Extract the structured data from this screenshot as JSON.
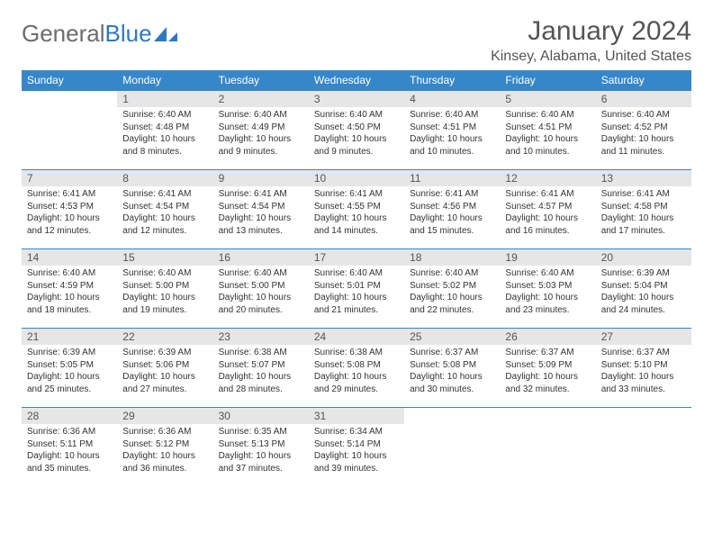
{
  "logo": {
    "text1": "General",
    "text2": "Blue"
  },
  "title": "January 2024",
  "location": "Kinsey, Alabama, United States",
  "colors": {
    "header_bg": "#3687c9",
    "header_text": "#ffffff",
    "daynum_bg": "#e6e6e6",
    "text": "#333333",
    "title": "#555555",
    "border": "#3687c9"
  },
  "day_headers": [
    "Sunday",
    "Monday",
    "Tuesday",
    "Wednesday",
    "Thursday",
    "Friday",
    "Saturday"
  ],
  "weeks": [
    [
      {
        "empty": true
      },
      {
        "n": "1",
        "sr": "6:40 AM",
        "ss": "4:48 PM",
        "dl": "10 hours and 8 minutes."
      },
      {
        "n": "2",
        "sr": "6:40 AM",
        "ss": "4:49 PM",
        "dl": "10 hours and 9 minutes."
      },
      {
        "n": "3",
        "sr": "6:40 AM",
        "ss": "4:50 PM",
        "dl": "10 hours and 9 minutes."
      },
      {
        "n": "4",
        "sr": "6:40 AM",
        "ss": "4:51 PM",
        "dl": "10 hours and 10 minutes."
      },
      {
        "n": "5",
        "sr": "6:40 AM",
        "ss": "4:51 PM",
        "dl": "10 hours and 10 minutes."
      },
      {
        "n": "6",
        "sr": "6:40 AM",
        "ss": "4:52 PM",
        "dl": "10 hours and 11 minutes."
      }
    ],
    [
      {
        "n": "7",
        "sr": "6:41 AM",
        "ss": "4:53 PM",
        "dl": "10 hours and 12 minutes."
      },
      {
        "n": "8",
        "sr": "6:41 AM",
        "ss": "4:54 PM",
        "dl": "10 hours and 12 minutes."
      },
      {
        "n": "9",
        "sr": "6:41 AM",
        "ss": "4:54 PM",
        "dl": "10 hours and 13 minutes."
      },
      {
        "n": "10",
        "sr": "6:41 AM",
        "ss": "4:55 PM",
        "dl": "10 hours and 14 minutes."
      },
      {
        "n": "11",
        "sr": "6:41 AM",
        "ss": "4:56 PM",
        "dl": "10 hours and 15 minutes."
      },
      {
        "n": "12",
        "sr": "6:41 AM",
        "ss": "4:57 PM",
        "dl": "10 hours and 16 minutes."
      },
      {
        "n": "13",
        "sr": "6:41 AM",
        "ss": "4:58 PM",
        "dl": "10 hours and 17 minutes."
      }
    ],
    [
      {
        "n": "14",
        "sr": "6:40 AM",
        "ss": "4:59 PM",
        "dl": "10 hours and 18 minutes."
      },
      {
        "n": "15",
        "sr": "6:40 AM",
        "ss": "5:00 PM",
        "dl": "10 hours and 19 minutes."
      },
      {
        "n": "16",
        "sr": "6:40 AM",
        "ss": "5:00 PM",
        "dl": "10 hours and 20 minutes."
      },
      {
        "n": "17",
        "sr": "6:40 AM",
        "ss": "5:01 PM",
        "dl": "10 hours and 21 minutes."
      },
      {
        "n": "18",
        "sr": "6:40 AM",
        "ss": "5:02 PM",
        "dl": "10 hours and 22 minutes."
      },
      {
        "n": "19",
        "sr": "6:40 AM",
        "ss": "5:03 PM",
        "dl": "10 hours and 23 minutes."
      },
      {
        "n": "20",
        "sr": "6:39 AM",
        "ss": "5:04 PM",
        "dl": "10 hours and 24 minutes."
      }
    ],
    [
      {
        "n": "21",
        "sr": "6:39 AM",
        "ss": "5:05 PM",
        "dl": "10 hours and 25 minutes."
      },
      {
        "n": "22",
        "sr": "6:39 AM",
        "ss": "5:06 PM",
        "dl": "10 hours and 27 minutes."
      },
      {
        "n": "23",
        "sr": "6:38 AM",
        "ss": "5:07 PM",
        "dl": "10 hours and 28 minutes."
      },
      {
        "n": "24",
        "sr": "6:38 AM",
        "ss": "5:08 PM",
        "dl": "10 hours and 29 minutes."
      },
      {
        "n": "25",
        "sr": "6:37 AM",
        "ss": "5:08 PM",
        "dl": "10 hours and 30 minutes."
      },
      {
        "n": "26",
        "sr": "6:37 AM",
        "ss": "5:09 PM",
        "dl": "10 hours and 32 minutes."
      },
      {
        "n": "27",
        "sr": "6:37 AM",
        "ss": "5:10 PM",
        "dl": "10 hours and 33 minutes."
      }
    ],
    [
      {
        "n": "28",
        "sr": "6:36 AM",
        "ss": "5:11 PM",
        "dl": "10 hours and 35 minutes."
      },
      {
        "n": "29",
        "sr": "6:36 AM",
        "ss": "5:12 PM",
        "dl": "10 hours and 36 minutes."
      },
      {
        "n": "30",
        "sr": "6:35 AM",
        "ss": "5:13 PM",
        "dl": "10 hours and 37 minutes."
      },
      {
        "n": "31",
        "sr": "6:34 AM",
        "ss": "5:14 PM",
        "dl": "10 hours and 39 minutes."
      },
      {
        "empty": true
      },
      {
        "empty": true
      },
      {
        "empty": true
      }
    ]
  ],
  "labels": {
    "sunrise": "Sunrise:",
    "sunset": "Sunset:",
    "daylight": "Daylight:"
  }
}
